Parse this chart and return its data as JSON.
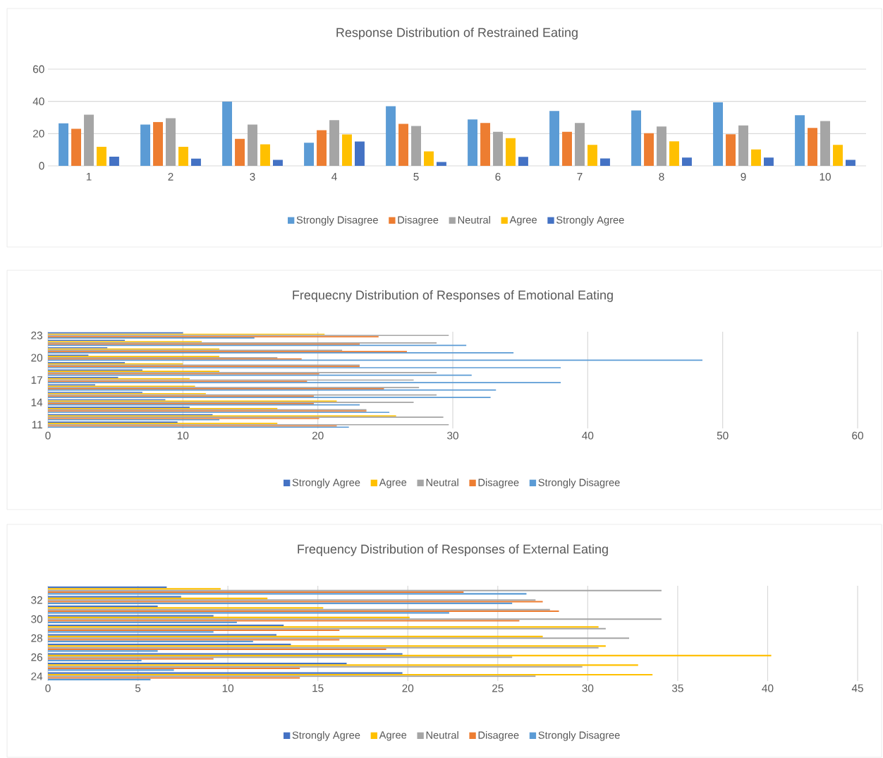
{
  "chart_data": [
    {
      "type": "bar",
      "title": "Response Distribution of Restrained Eating",
      "categories": [
        "1",
        "2",
        "3",
        "4",
        "5",
        "6",
        "7",
        "8",
        "9",
        "10"
      ],
      "ylim": [
        0,
        60
      ],
      "yticks": [
        0,
        20,
        40,
        60
      ],
      "grid": "y",
      "legend": "bottom",
      "series": [
        {
          "name": "Strongly Disagree",
          "color": "#5b9bd5",
          "values": [
            26.4,
            25.6,
            39.8,
            14.3,
            37.0,
            28.8,
            34.1,
            34.4,
            39.4,
            31.4
          ]
        },
        {
          "name": "Disagree",
          "color": "#ed7d31",
          "values": [
            23.0,
            27.3,
            16.7,
            22.1,
            26.1,
            26.6,
            21.1,
            20.3,
            19.6,
            23.5
          ]
        },
        {
          "name": "Neutral",
          "color": "#a5a5a5",
          "values": [
            31.8,
            29.6,
            25.6,
            28.3,
            24.7,
            21.1,
            26.6,
            24.4,
            25.1,
            27.8
          ]
        },
        {
          "name": "Agree",
          "color": "#ffc000",
          "values": [
            11.8,
            11.8,
            13.4,
            19.5,
            9.0,
            17.2,
            13.0,
            15.2,
            10.2,
            13.0
          ]
        },
        {
          "name": "Strongly Agree",
          "color": "#4472c4",
          "values": [
            5.7,
            4.5,
            3.7,
            15.1,
            2.4,
            5.6,
            4.6,
            5.1,
            5.1,
            3.7
          ]
        }
      ]
    },
    {
      "type": "bar",
      "orientation": "horizontal",
      "title": "Frequecny Distribution of Responses of Emotional Eating",
      "categories": [
        "23",
        null,
        null,
        "20",
        null,
        null,
        "17",
        null,
        null,
        "14",
        null,
        null,
        "11"
      ],
      "xlim": [
        0,
        60
      ],
      "xticks": [
        0,
        10,
        20,
        30,
        40,
        50,
        60
      ],
      "grid": "x",
      "legend": "bottom",
      "series": [
        {
          "name": "Strongly Agree",
          "color": "#4472c4",
          "values": [
            10.0,
            5.7,
            4.4,
            3.0,
            5.7,
            7.0,
            5.2,
            3.5,
            7.0,
            8.7,
            10.5,
            12.2,
            9.6
          ]
        },
        {
          "name": "Agree",
          "color": "#ffc000",
          "values": [
            20.5,
            11.4,
            12.7,
            12.7,
            10.0,
            12.7,
            10.5,
            10.9,
            11.7,
            21.4,
            17.0,
            25.8,
            17.0
          ]
        },
        {
          "name": "Neutral",
          "color": "#a5a5a5",
          "values": [
            29.7,
            28.8,
            21.8,
            17.0,
            23.1,
            28.8,
            27.1,
            27.5,
            28.8,
            27.1,
            23.6,
            29.3,
            29.7
          ]
        },
        {
          "name": "Disagree",
          "color": "#ed7d31",
          "values": [
            24.5,
            23.1,
            26.6,
            18.8,
            23.1,
            20.1,
            19.2,
            24.9,
            19.7,
            19.7,
            23.6,
            20.1,
            21.4
          ]
        },
        {
          "name": "Strongly Disagree",
          "color": "#5b9bd5",
          "values": [
            15.3,
            31.0,
            34.5,
            48.5,
            38.0,
            31.4,
            38.0,
            33.2,
            32.8,
            23.1,
            25.3,
            12.7,
            22.3
          ]
        }
      ]
    },
    {
      "type": "bar",
      "orientation": "horizontal",
      "title": "Frequency Distribution of Responses of External Eating",
      "categories": [
        null,
        "32",
        null,
        "30",
        null,
        "28",
        null,
        "26",
        null,
        "24"
      ],
      "xlim": [
        0,
        45
      ],
      "xticks": [
        0,
        5,
        10,
        15,
        20,
        25,
        30,
        35,
        40,
        45
      ],
      "grid": "x",
      "legend": "bottom",
      "series": [
        {
          "name": "Strongly Agree",
          "color": "#4472c4",
          "values": [
            6.6,
            7.4,
            6.1,
            9.2,
            13.1,
            12.7,
            13.5,
            19.7,
            16.6,
            19.7
          ]
        },
        {
          "name": "Agree",
          "color": "#ffc000",
          "values": [
            9.6,
            12.2,
            15.3,
            20.1,
            30.6,
            27.5,
            31.0,
            40.2,
            32.8,
            33.6
          ]
        },
        {
          "name": "Neutral",
          "color": "#a5a5a5",
          "values": [
            34.1,
            27.1,
            27.9,
            34.1,
            31.0,
            32.3,
            30.6,
            25.8,
            29.7,
            27.1
          ]
        },
        {
          "name": "Disagree",
          "color": "#ed7d31",
          "values": [
            23.1,
            27.5,
            28.4,
            26.2,
            16.2,
            16.2,
            18.8,
            9.2,
            14.0,
            14.0
          ]
        },
        {
          "name": "Strongly Disagree",
          "color": "#5b9bd5",
          "values": [
            26.6,
            25.8,
            22.3,
            10.5,
            9.2,
            11.4,
            6.1,
            5.2,
            7.0,
            5.7
          ]
        }
      ]
    }
  ]
}
